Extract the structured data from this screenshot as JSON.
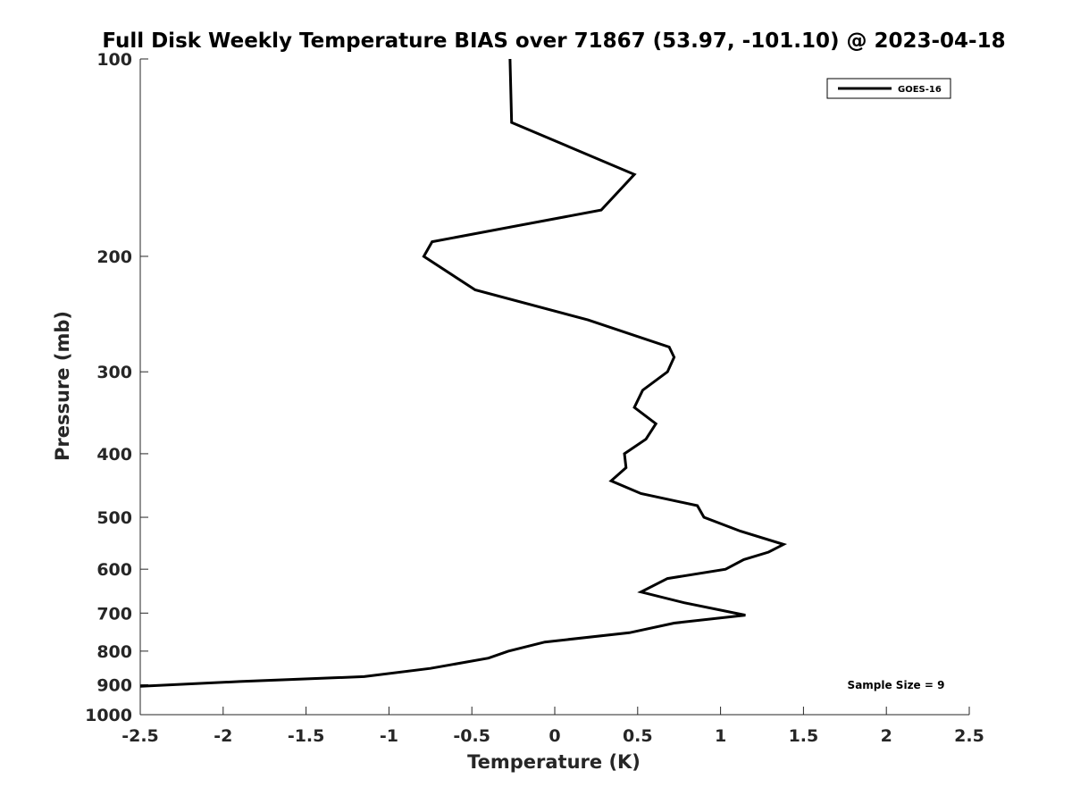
{
  "chart_data": {
    "type": "line",
    "title": "Full Disk Weekly Temperature BIAS over 71867 (53.97, -101.10) @ 2023-04-18",
    "xlabel": "Temperature (K)",
    "ylabel": "Pressure (mb)",
    "xlim": [
      -2.5,
      2.5
    ],
    "ylim": [
      100,
      1000
    ],
    "y_scale": "log",
    "y_reversed": true,
    "xticks": [
      "-2.5",
      "-2",
      "-1.5",
      "-1",
      "-0.5",
      "0",
      "0.5",
      "1",
      "1.5",
      "2",
      "2.5"
    ],
    "yticks": [
      "100",
      "200",
      "300",
      "400",
      "500",
      "600",
      "700",
      "800",
      "900",
      "1000"
    ],
    "grid": false,
    "legend_position": "top-right",
    "annotation": "Sample Size = 9",
    "series": [
      {
        "name": "GOES-16",
        "color": "#000000",
        "points": [
          [
            -0.27,
            100
          ],
          [
            -0.26,
            125
          ],
          [
            0.48,
            150
          ],
          [
            0.28,
            170
          ],
          [
            -0.74,
            190
          ],
          [
            -0.79,
            200
          ],
          [
            -0.48,
            225
          ],
          [
            0.2,
            250
          ],
          [
            0.69,
            275
          ],
          [
            0.72,
            285
          ],
          [
            0.68,
            300
          ],
          [
            0.53,
            320
          ],
          [
            0.48,
            340
          ],
          [
            0.61,
            360
          ],
          [
            0.55,
            380
          ],
          [
            0.42,
            400
          ],
          [
            0.43,
            420
          ],
          [
            0.34,
            440
          ],
          [
            0.52,
            460
          ],
          [
            0.86,
            480
          ],
          [
            0.9,
            500
          ],
          [
            1.12,
            525
          ],
          [
            1.38,
            550
          ],
          [
            1.29,
            565
          ],
          [
            1.14,
            580
          ],
          [
            1.03,
            600
          ],
          [
            0.68,
            620
          ],
          [
            0.52,
            650
          ],
          [
            0.78,
            675
          ],
          [
            1.15,
            705
          ],
          [
            0.72,
            725
          ],
          [
            0.45,
            750
          ],
          [
            -0.06,
            775
          ],
          [
            -0.28,
            800
          ],
          [
            -0.4,
            820
          ],
          [
            -0.75,
            850
          ],
          [
            -1.15,
            875
          ],
          [
            -1.9,
            890
          ],
          [
            -2.5,
            905
          ]
        ]
      }
    ]
  }
}
